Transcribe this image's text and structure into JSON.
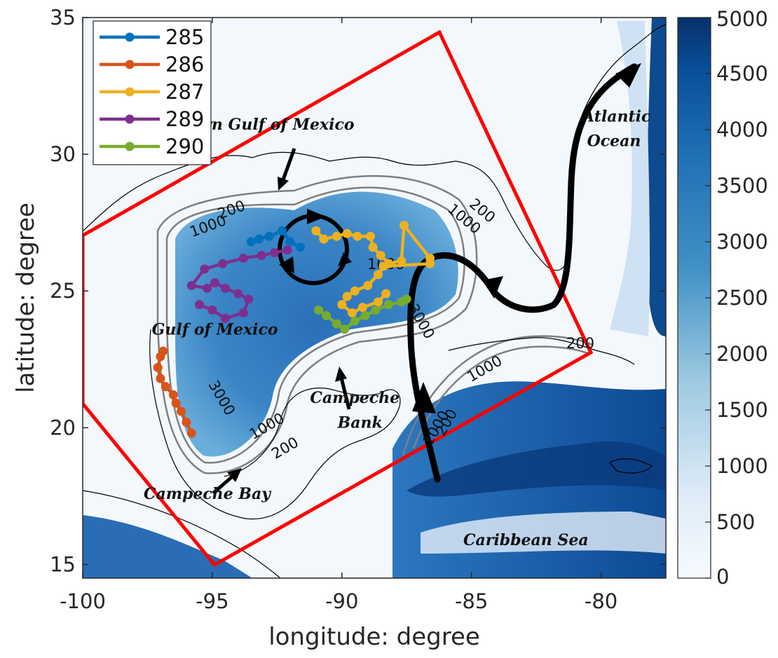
{
  "axes": {
    "xlabel": "longitude: degree",
    "ylabel": "latitude: degree",
    "xlim": [
      -100,
      -77.5
    ],
    "ylim": [
      14.5,
      35
    ],
    "xticks": [
      -100,
      -95,
      -90,
      -85,
      -80
    ],
    "yticks": [
      15,
      20,
      25,
      30,
      35
    ]
  },
  "colorbar": {
    "ticks": [
      0,
      500,
      1000,
      1500,
      2000,
      2500,
      3000,
      3500,
      4000,
      4500,
      5000
    ],
    "range": [
      0,
      5000
    ],
    "color_low": "#f7fbff",
    "color_high": "#08306b"
  },
  "legend": {
    "entries": [
      {
        "name": "285",
        "color": "#0072bd"
      },
      {
        "name": "286",
        "color": "#d95319"
      },
      {
        "name": "287",
        "color": "#edb120"
      },
      {
        "name": "289",
        "color": "#7e2f8e"
      },
      {
        "name": "290",
        "color": "#77ac30"
      }
    ]
  },
  "places": [
    {
      "id": "northern-gulf",
      "text": "Northern Gulf of Mexico",
      "lon": -93.6,
      "lat": 30.9
    },
    {
      "id": "atlantic-1",
      "text": "Atlantic",
      "lon": -79.4,
      "lat": 31.2
    },
    {
      "id": "atlantic-2",
      "text": "Ocean",
      "lon": -79.5,
      "lat": 30.3
    },
    {
      "id": "gulf-of-mexico",
      "text": "Gulf of Mexico",
      "lon": -94.9,
      "lat": 23.4
    },
    {
      "id": "campeche-bank-1",
      "text": "Campeche",
      "lon": -89.5,
      "lat": 20.9
    },
    {
      "id": "campeche-bank-2",
      "text": "Bank",
      "lon": -89.3,
      "lat": 20.0
    },
    {
      "id": "campeche-bay",
      "text": "Campeche Bay",
      "lon": -95.2,
      "lat": 17.4
    },
    {
      "id": "caribbean-sea",
      "text": "Caribbean Sea",
      "lon": -82.9,
      "lat": 15.7
    }
  ],
  "contour_labels": [
    {
      "text": "200",
      "lon": -94.2,
      "lat": 27.8,
      "rot": -20
    },
    {
      "text": "1000",
      "lon": -95.1,
      "lat": 27.2,
      "rot": -20
    },
    {
      "text": "200",
      "lon": -84.7,
      "lat": 27.8,
      "rot": 40
    },
    {
      "text": "1000",
      "lon": -85.4,
      "lat": 27.5,
      "rot": 40
    },
    {
      "text": "1000",
      "lon": -88.3,
      "lat": 25.8,
      "rot": 0
    },
    {
      "text": "3000",
      "lon": -87.1,
      "lat": 23.8,
      "rot": 60
    },
    {
      "text": "200",
      "lon": -80.8,
      "lat": 22.9,
      "rot": 0
    },
    {
      "text": "1000",
      "lon": -84.4,
      "lat": 22.0,
      "rot": -30
    },
    {
      "text": "3000",
      "lon": -94.8,
      "lat": 21.0,
      "rot": 60
    },
    {
      "text": "1000",
      "lon": -92.8,
      "lat": 19.9,
      "rot": -30
    },
    {
      "text": "200",
      "lon": -92.1,
      "lat": 19.1,
      "rot": -30
    },
    {
      "text": "200",
      "lon": -85.8,
      "lat": 20.1,
      "rot": -60
    },
    {
      "text": "1000",
      "lon": -86.2,
      "lat": 19.9,
      "rot": -60
    }
  ],
  "chart_data": {
    "type": "line",
    "series": [
      {
        "name": "285",
        "color": "#0072bd",
        "x": [
          -93.5,
          -93.2,
          -92.8,
          -92.3,
          -92.0,
          -91.6
        ],
        "y": [
          26.8,
          26.9,
          27.0,
          27.2,
          26.8,
          26.6
        ]
      },
      {
        "name": "286",
        "color": "#d95319",
        "x": [
          -96.9,
          -97.0,
          -97.1,
          -97.0,
          -96.8,
          -96.5,
          -96.4,
          -96.2,
          -96.0,
          -95.8
        ],
        "y": [
          22.8,
          22.6,
          22.2,
          21.8,
          21.5,
          21.2,
          20.9,
          20.6,
          20.2,
          19.8
        ]
      },
      {
        "name": "287",
        "color": "#edb120",
        "x": [
          -91.0,
          -90.7,
          -90.2,
          -89.8,
          -89.4,
          -88.9,
          -88.8,
          -88.5,
          -88.2,
          -87.7,
          -87.6,
          -86.6,
          -86.6,
          -88.4,
          -88.6,
          -89.0,
          -89.5,
          -89.8,
          -90.0,
          -89.6,
          -89.2,
          -88.6,
          -88.3
        ],
        "y": [
          27.2,
          26.9,
          27.0,
          27.1,
          27.0,
          27.0,
          26.6,
          26.3,
          26.0,
          26.1,
          27.4,
          26.2,
          26.0,
          25.9,
          25.6,
          25.2,
          25.0,
          24.8,
          24.5,
          24.2,
          24.4,
          24.6,
          24.9
        ]
      },
      {
        "name": "289",
        "color": "#7e2f8e",
        "x": [
          -92.1,
          -92.6,
          -93.1,
          -93.8,
          -94.6,
          -95.3,
          -95.8,
          -95.2,
          -94.9,
          -94.5,
          -94.0,
          -93.6,
          -93.8,
          -94.5,
          -95.0,
          -95.5
        ],
        "y": [
          26.5,
          26.4,
          26.3,
          26.2,
          26.0,
          25.8,
          25.2,
          25.1,
          25.3,
          25.1,
          24.9,
          24.7,
          24.2,
          24.0,
          24.3,
          24.5
        ]
      },
      {
        "name": "290",
        "color": "#77ac30",
        "x": [
          -90.9,
          -90.6,
          -90.2,
          -89.9,
          -89.5,
          -89.1,
          -88.7,
          -88.2,
          -87.7,
          -87.5
        ],
        "y": [
          24.3,
          24.1,
          23.8,
          23.6,
          23.9,
          24.1,
          24.3,
          24.5,
          24.6,
          24.7
        ]
      }
    ]
  }
}
